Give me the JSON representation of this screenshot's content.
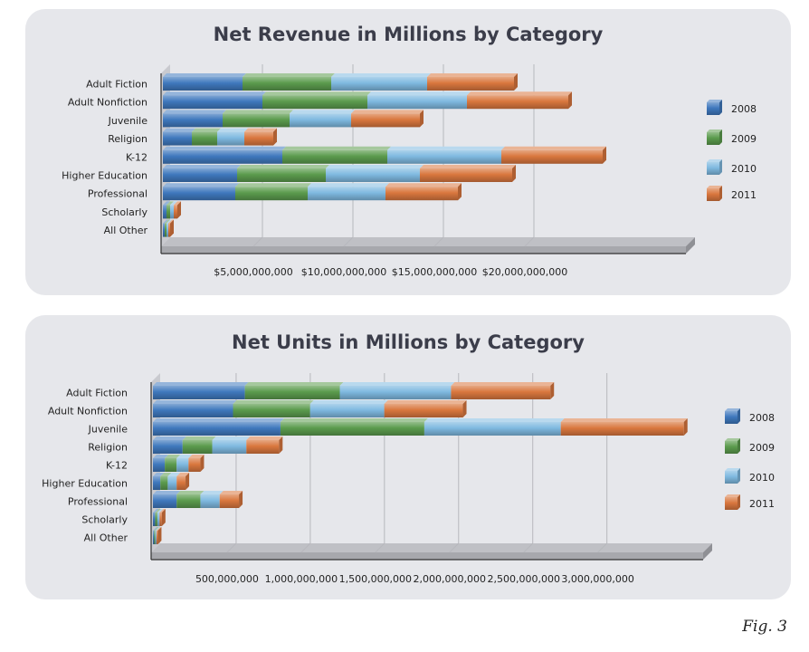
{
  "figure_label": "Fig. 3",
  "colors": {
    "2008": "#3f78bd",
    "2009": "#5b9b4d",
    "2010": "#7fb9e0",
    "2011": "#d9773e"
  },
  "chart_data": [
    {
      "id": "revenue",
      "type": "bar",
      "orientation": "horizontal",
      "stacked": true,
      "title": "Net Revenue in Millions by Category",
      "categories": [
        "Adult Fiction",
        "Adult Nonfiction",
        "Juvenile",
        "Religion",
        "K-12",
        "Higher Education",
        "Professional",
        "Scholarly",
        "All Other"
      ],
      "series": [
        {
          "name": "2008",
          "values": [
            4400000000,
            5500000000,
            3300000000,
            1600000000,
            6600000000,
            4100000000,
            4000000000,
            200000000,
            100000000
          ]
        },
        {
          "name": "2009",
          "values": [
            4900000000,
            5800000000,
            3700000000,
            1400000000,
            5800000000,
            4900000000,
            4000000000,
            200000000,
            100000000
          ]
        },
        {
          "name": "2010",
          "values": [
            5300000000,
            5500000000,
            3400000000,
            1500000000,
            6300000000,
            5200000000,
            4300000000,
            200000000,
            100000000
          ]
        },
        {
          "name": "2011",
          "values": [
            4800000000,
            5600000000,
            3800000000,
            1600000000,
            5600000000,
            5100000000,
            4000000000,
            200000000,
            100000000
          ]
        }
      ],
      "xlim": [
        0,
        28000000000
      ],
      "x_ticks": [
        5000000000,
        10000000000,
        15000000000,
        20000000000
      ],
      "x_tick_labels": [
        "$5,000,000,000",
        "$10,000,000,000",
        "$15,000,000,000",
        "$20,000,000,000"
      ],
      "grid": true,
      "legend": "right"
    },
    {
      "id": "units",
      "type": "bar",
      "orientation": "horizontal",
      "stacked": true,
      "title": "Net Units in Millions by Category",
      "categories": [
        "Adult Fiction",
        "Adult Nonfiction",
        "Juvenile",
        "Religion",
        "K-12",
        "Higher Education",
        "Professional",
        "Scholarly",
        "All Other"
      ],
      "series": [
        {
          "name": "2008",
          "values": [
            620000000,
            540000000,
            860000000,
            200000000,
            80000000,
            50000000,
            160000000,
            15000000,
            8000000
          ]
        },
        {
          "name": "2009",
          "values": [
            640000000,
            520000000,
            970000000,
            200000000,
            80000000,
            50000000,
            160000000,
            15000000,
            8000000
          ]
        },
        {
          "name": "2010",
          "values": [
            750000000,
            500000000,
            920000000,
            230000000,
            80000000,
            60000000,
            130000000,
            15000000,
            8000000
          ]
        },
        {
          "name": "2011",
          "values": [
            670000000,
            530000000,
            830000000,
            220000000,
            80000000,
            60000000,
            130000000,
            15000000,
            8000000
          ]
        }
      ],
      "xlim": [
        0,
        3600000000
      ],
      "x_ticks": [
        500000000,
        1000000000,
        1500000000,
        2000000000,
        2500000000,
        3000000000
      ],
      "x_tick_labels": [
        "500,000,000",
        "1,000,000,000",
        "1,500,000,000",
        "2,000,000,000",
        "2,500,000,000",
        "3,000,000,000"
      ],
      "grid": true,
      "legend": "right"
    }
  ]
}
